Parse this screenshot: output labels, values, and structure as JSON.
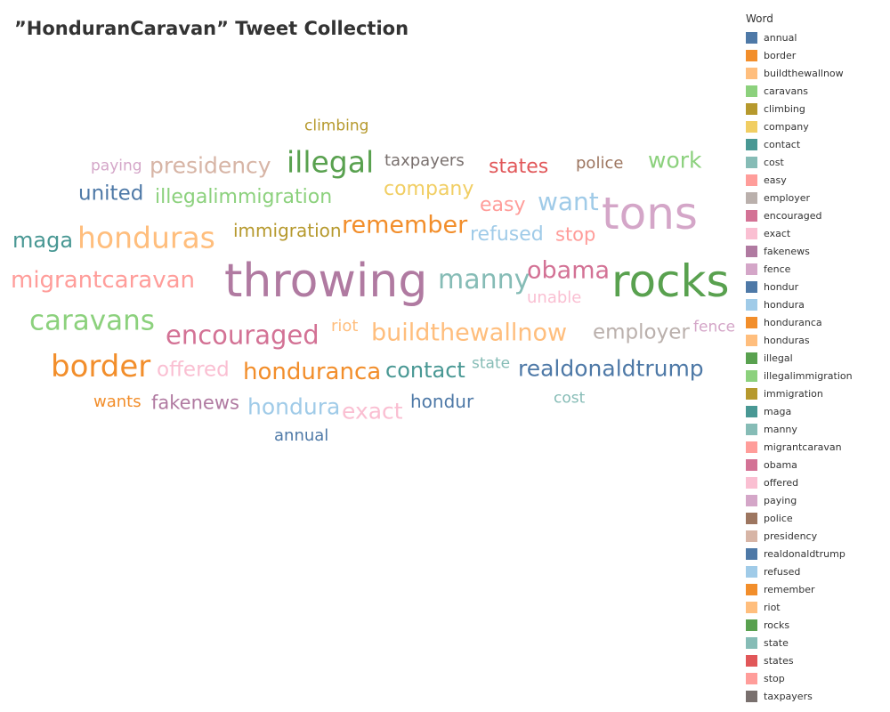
{
  "chart_data": {
    "type": "wordcloud",
    "title": "”HonduranCaravan” Tweet Collection",
    "legend_title": "Word",
    "legend": [
      {
        "label": "annual",
        "color": "#4e79a7"
      },
      {
        "label": "border",
        "color": "#f28e2b"
      },
      {
        "label": "buildthewallnow",
        "color": "#ffbe7d"
      },
      {
        "label": "caravans",
        "color": "#8cd17d"
      },
      {
        "label": "climbing",
        "color": "#b6992d"
      },
      {
        "label": "company",
        "color": "#f1ce63"
      },
      {
        "label": "contact",
        "color": "#499894"
      },
      {
        "label": "cost",
        "color": "#86bcb6"
      },
      {
        "label": "easy",
        "color": "#ff9d9a"
      },
      {
        "label": "employer",
        "color": "#bab0ac"
      },
      {
        "label": "encouraged",
        "color": "#d37295"
      },
      {
        "label": "exact",
        "color": "#fabfd2"
      },
      {
        "label": "fakenews",
        "color": "#b07aa1"
      },
      {
        "label": "fence",
        "color": "#d4a6c8"
      },
      {
        "label": "hondur",
        "color": "#4e79a7"
      },
      {
        "label": "hondura",
        "color": "#a0cbe8"
      },
      {
        "label": "honduranca",
        "color": "#f28e2b"
      },
      {
        "label": "honduras",
        "color": "#ffbe7d"
      },
      {
        "label": "illegal",
        "color": "#59a14f"
      },
      {
        "label": "illegalimmigration",
        "color": "#8cd17d"
      },
      {
        "label": "immigration",
        "color": "#b6992d"
      },
      {
        "label": "maga",
        "color": "#499894"
      },
      {
        "label": "manny",
        "color": "#86bcb6"
      },
      {
        "label": "migrantcaravan",
        "color": "#ff9d9a"
      },
      {
        "label": "obama",
        "color": "#d37295"
      },
      {
        "label": "offered",
        "color": "#fabfd2"
      },
      {
        "label": "paying",
        "color": "#d4a6c8"
      },
      {
        "label": "police",
        "color": "#9d7660"
      },
      {
        "label": "presidency",
        "color": "#d7b5a6"
      },
      {
        "label": "realdonaldtrump",
        "color": "#4e79a7"
      },
      {
        "label": "refused",
        "color": "#a0cbe8"
      },
      {
        "label": "remember",
        "color": "#f28e2b"
      },
      {
        "label": "riot",
        "color": "#ffbe7d"
      },
      {
        "label": "rocks",
        "color": "#59a14f"
      },
      {
        "label": "state",
        "color": "#86bcb6"
      },
      {
        "label": "states",
        "color": "#e15759"
      },
      {
        "label": "stop",
        "color": "#ff9d9a"
      },
      {
        "label": "taxpayers",
        "color": "#79706e"
      }
    ],
    "words": [
      {
        "text": "climbing",
        "color": "#b6992d"
      },
      {
        "text": "paying",
        "color": "#d4a6c8"
      },
      {
        "text": "presidency",
        "color": "#d7b5a6"
      },
      {
        "text": "illegal",
        "color": "#59a14f"
      },
      {
        "text": "taxpayers",
        "color": "#79706e"
      },
      {
        "text": "states",
        "color": "#e15759"
      },
      {
        "text": "police",
        "color": "#9d7660"
      },
      {
        "text": "work",
        "color": "#8cd17d"
      },
      {
        "text": "united",
        "color": "#4e79a7"
      },
      {
        "text": "illegalimmigration",
        "color": "#8cd17d"
      },
      {
        "text": "company",
        "color": "#f1ce63"
      },
      {
        "text": "easy",
        "color": "#ff9d9a"
      },
      {
        "text": "want",
        "color": "#a0cbe8"
      },
      {
        "text": "tons",
        "color": "#d4a6c8"
      },
      {
        "text": "maga",
        "color": "#499894"
      },
      {
        "text": "honduras",
        "color": "#ffbe7d"
      },
      {
        "text": "immigration",
        "color": "#b6992d"
      },
      {
        "text": "remember",
        "color": "#f28e2b"
      },
      {
        "text": "refused",
        "color": "#a0cbe8"
      },
      {
        "text": "stop",
        "color": "#ff9d9a"
      },
      {
        "text": "migrantcaravan",
        "color": "#ff9d9a"
      },
      {
        "text": "throwing",
        "color": "#b07aa1"
      },
      {
        "text": "manny",
        "color": "#86bcb6"
      },
      {
        "text": "obama",
        "color": "#d37295"
      },
      {
        "text": "rocks",
        "color": "#59a14f"
      },
      {
        "text": "unable",
        "color": "#fabfd2"
      },
      {
        "text": "caravans",
        "color": "#8cd17d"
      },
      {
        "text": "encouraged",
        "color": "#d37295"
      },
      {
        "text": "riot",
        "color": "#ffbe7d"
      },
      {
        "text": "buildthewallnow",
        "color": "#ffbe7d"
      },
      {
        "text": "employer",
        "color": "#bab0ac"
      },
      {
        "text": "fence",
        "color": "#d4a6c8"
      },
      {
        "text": "border",
        "color": "#f28e2b"
      },
      {
        "text": "offered",
        "color": "#fabfd2"
      },
      {
        "text": "honduranca",
        "color": "#f28e2b"
      },
      {
        "text": "contact",
        "color": "#499894"
      },
      {
        "text": "state",
        "color": "#86bcb6"
      },
      {
        "text": "realdonaldtrump",
        "color": "#4e79a7"
      },
      {
        "text": "wants",
        "color": "#f28e2b"
      },
      {
        "text": "fakenews",
        "color": "#b07aa1"
      },
      {
        "text": "hondura",
        "color": "#a0cbe8"
      },
      {
        "text": "exact",
        "color": "#fabfd2"
      },
      {
        "text": "hondur",
        "color": "#4e79a7"
      },
      {
        "text": "cost",
        "color": "#86bcb6"
      },
      {
        "text": "annual",
        "color": "#4e79a7"
      }
    ]
  }
}
